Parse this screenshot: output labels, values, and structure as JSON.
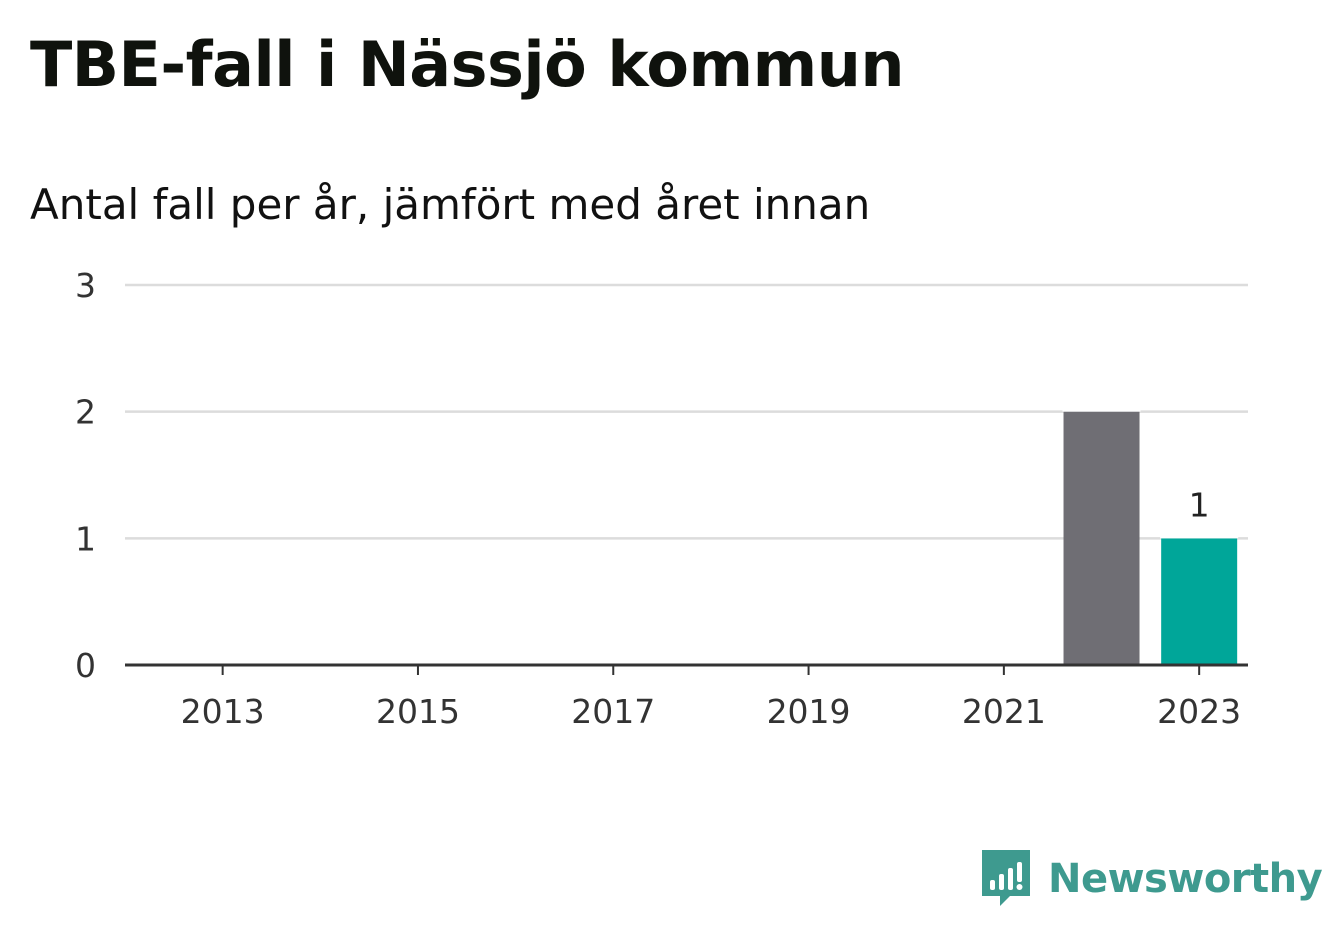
{
  "header": {
    "title": "TBE-fall i Nässjö kommun",
    "subtitle": "Antal fall per år, jämfört med året innan"
  },
  "brand": {
    "name": "Newsworthy",
    "color": "#3e9a8f",
    "icon": "chart-speech-bubble-icon"
  },
  "chart_data": {
    "type": "bar",
    "categories": [
      "2022",
      "2023"
    ],
    "series": [
      {
        "values": [
          2,
          1
        ],
        "colors": [
          "#6f6e74",
          "#00a699"
        ],
        "data_labels": [
          null,
          "1"
        ]
      }
    ],
    "x_ticks": [
      "2013",
      "2015",
      "2017",
      "2019",
      "2021",
      "2023"
    ],
    "xlim": [
      2012,
      2023.5
    ],
    "y_ticks": [
      "0",
      "1",
      "2",
      "3"
    ],
    "ylim": [
      0,
      3
    ],
    "grid": true,
    "xlabel": "",
    "ylabel": "",
    "legend": "none",
    "colors": {
      "previous_year": "#6f6e74",
      "current_year": "#00a699",
      "gridline": "#dcdcdc",
      "axis": "#333333"
    }
  }
}
